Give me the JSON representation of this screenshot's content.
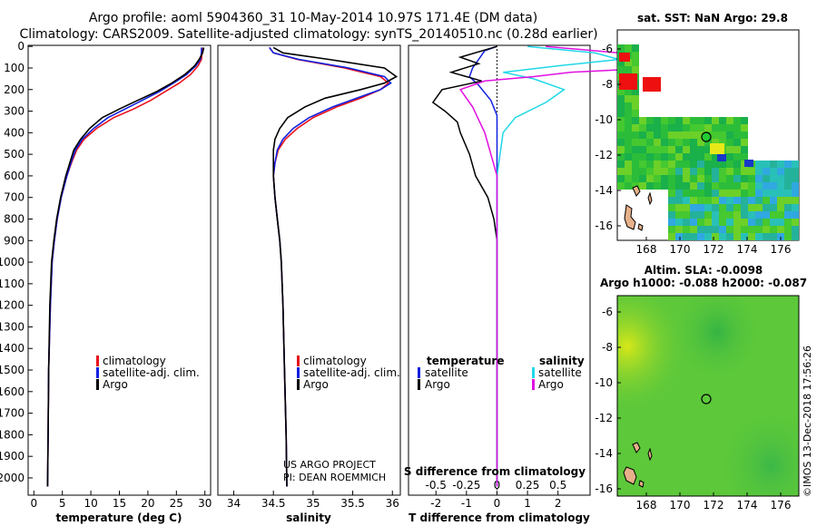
{
  "title_line1": "Argo profile: aoml 5904360_31 10-May-2014 10.97S 171.4E (DM data)",
  "title_line2": "Climatology: CARS2009. Satellite-adjusted climatology: synTS_20140510.nc (0.28d earlier)",
  "colors": {
    "clim": "#e8101a",
    "sat": "#1020e0",
    "argo": "#000000",
    "sat_s": "#20d8e8",
    "argo_s": "#e010e0"
  },
  "depth_ticks": [
    "0",
    "100",
    "200",
    "300",
    "400",
    "500",
    "600",
    "700",
    "800",
    "900",
    "1000",
    "1100",
    "1200",
    "1300",
    "1400",
    "1500",
    "1600",
    "1700",
    "1800",
    "1900",
    "2000"
  ],
  "chart_data": [
    {
      "type": "line",
      "name": "temperature-profile",
      "xlabel": "temperature (deg C)",
      "xlim": [
        -1,
        31
      ],
      "ylim": [
        2080,
        -5
      ],
      "xticks": [
        "0",
        "5",
        "10",
        "15",
        "20",
        "25",
        "30"
      ],
      "legend": [
        "climatology",
        "satellite-adj. clim.",
        "Argo"
      ],
      "series": [
        {
          "name": "climatology",
          "x": [
            29.6,
            29.5,
            29.4,
            28.8,
            27.5,
            25.5,
            23,
            20.5,
            17.5,
            14,
            11,
            8.8,
            7.5,
            6.6,
            5.8,
            4.8,
            4.1,
            3.6,
            3.2,
            2.9,
            2.6,
            2.5,
            2.4
          ],
          "y": [
            5,
            30,
            60,
            90,
            130,
            170,
            210,
            250,
            290,
            330,
            380,
            430,
            480,
            540,
            600,
            700,
            800,
            900,
            1000,
            1200,
            1500,
            1800,
            2040
          ]
        },
        {
          "name": "satellite-adj. clim.",
          "x": [
            29.4,
            29.4,
            29.2,
            28.4,
            26.8,
            24.5,
            22,
            19,
            16,
            13,
            10.5,
            8.5,
            7.3,
            6.5,
            5.8,
            4.8,
            4.1,
            3.6,
            3.2,
            2.9,
            2.6,
            2.5,
            2.4
          ],
          "y": [
            5,
            30,
            60,
            90,
            130,
            170,
            210,
            250,
            290,
            330,
            380,
            430,
            480,
            540,
            600,
            700,
            800,
            900,
            1000,
            1200,
            1500,
            1800,
            2040
          ]
        },
        {
          "name": "Argo",
          "x": [
            29.8,
            29.6,
            29.0,
            28.2,
            26.5,
            24.2,
            21.5,
            18.2,
            15,
            12,
            9.8,
            8.2,
            7.0,
            6.3,
            5.6,
            4.7,
            4.0,
            3.5,
            3.1,
            2.8,
            2.6,
            2.5,
            2.4
          ],
          "y": [
            5,
            30,
            60,
            90,
            130,
            170,
            210,
            250,
            290,
            330,
            380,
            430,
            480,
            540,
            600,
            700,
            800,
            900,
            1000,
            1200,
            1500,
            1800,
            2040
          ]
        }
      ]
    },
    {
      "type": "line",
      "name": "salinity-profile",
      "xlabel": "salinity",
      "xlim": [
        33.8,
        36.1
      ],
      "ylim": [
        2080,
        -5
      ],
      "xticks": [
        "34",
        "34.5",
        "35",
        "35.5",
        "36"
      ],
      "legend": [
        "climatology",
        "satellite-adj. clim.",
        "Argo"
      ],
      "series": [
        {
          "name": "climatology",
          "x": [
            34.45,
            34.5,
            34.8,
            35.4,
            35.85,
            35.95,
            35.85,
            35.6,
            35.3,
            35.0,
            34.8,
            34.65,
            34.56,
            34.52,
            34.5,
            34.52,
            34.55,
            34.58,
            34.6,
            34.62,
            34.64,
            34.66,
            34.67
          ],
          "y": [
            5,
            30,
            60,
            100,
            140,
            170,
            200,
            240,
            280,
            330,
            380,
            430,
            480,
            540,
            600,
            700,
            800,
            900,
            1000,
            1200,
            1500,
            1800,
            2040
          ]
        },
        {
          "name": "satellite-adj. clim.",
          "x": [
            34.45,
            34.5,
            34.82,
            35.45,
            35.9,
            35.98,
            35.85,
            35.55,
            35.25,
            34.95,
            34.75,
            34.62,
            34.55,
            34.52,
            34.5,
            34.52,
            34.55,
            34.58,
            34.6,
            34.62,
            34.64,
            34.66,
            34.67
          ],
          "y": [
            5,
            30,
            60,
            100,
            140,
            170,
            200,
            240,
            280,
            330,
            380,
            430,
            480,
            540,
            600,
            700,
            800,
            900,
            1000,
            1200,
            1500,
            1800,
            2040
          ]
        },
        {
          "name": "Argo",
          "x": [
            34.5,
            34.62,
            35.2,
            35.9,
            36.05,
            35.9,
            35.6,
            35.15,
            34.9,
            34.68,
            34.58,
            34.52,
            34.5,
            34.5,
            34.5,
            34.52,
            34.55,
            34.58,
            34.6,
            34.62,
            34.64,
            34.66,
            34.67
          ],
          "y": [
            5,
            30,
            60,
            100,
            140,
            170,
            200,
            240,
            280,
            330,
            380,
            430,
            480,
            540,
            600,
            700,
            800,
            900,
            1000,
            1200,
            1500,
            1800,
            2040
          ]
        }
      ]
    },
    {
      "type": "line",
      "name": "difference-profile",
      "xlabel": "T difference from climatology",
      "top_label": "S difference from climatology",
      "xlim": [
        -2.9,
        3.05
      ],
      "ylim": [
        2080,
        -5
      ],
      "xticks": [
        "-2",
        "-1",
        "0",
        "1",
        "2"
      ],
      "sticks": [
        "-0.5",
        "-0.25",
        "0",
        "0.25",
        "0.5"
      ],
      "legend_t": [
        "temperature",
        "satellite",
        "Argo"
      ],
      "legend_s": [
        "salinity",
        "satellite",
        "Argo"
      ],
      "series": [
        {
          "name": "T satellite",
          "x": [
            0,
            -0.4,
            -0.6,
            -0.8,
            -0.9,
            -0.6,
            -0.2,
            0,
            0,
            0,
            0
          ],
          "y": [
            0,
            20,
            60,
            100,
            140,
            180,
            250,
            320,
            400,
            800,
            2040
          ]
        },
        {
          "name": "T Argo",
          "x": [
            0,
            -1.2,
            -0.6,
            -1.5,
            -0.5,
            -1.8,
            -2.1,
            -1.7,
            -1.3,
            -1.2,
            -0.9,
            -0.7,
            -0.3,
            -0.1,
            0,
            0
          ],
          "y": [
            0,
            50,
            80,
            120,
            160,
            200,
            260,
            300,
            350,
            400,
            500,
            600,
            700,
            800,
            900,
            2040
          ]
        },
        {
          "name": "S satellite",
          "x": [
            0.25,
            0.8,
            1.0,
            0.5,
            0.05,
            0.3,
            0.55,
            0.4,
            0.15,
            0.05,
            0,
            0
          ],
          "y": [
            0,
            30,
            60,
            90,
            120,
            150,
            200,
            260,
            330,
            400,
            600,
            2040
          ]
        },
        {
          "name": "S Argo",
          "x": [
            0.4,
            1.2,
            1.8,
            1.3,
            0.6,
            0.3,
            -0.1,
            -0.3,
            -0.2,
            -0.1,
            0,
            0
          ],
          "y": [
            0,
            40,
            70,
            100,
            120,
            140,
            160,
            200,
            280,
            400,
            600,
            2040
          ]
        }
      ]
    },
    {
      "type": "heatmap",
      "name": "sst-map",
      "title": "sat. SST: NaN Argo: 29.8",
      "xticks": [
        "168",
        "170",
        "172",
        "174",
        "176"
      ],
      "yticks": [
        "-6",
        "-8",
        "-10",
        "-12",
        "-14",
        "-16"
      ]
    },
    {
      "type": "heatmap",
      "name": "sla-map",
      "title1": "Altim. SLA: -0.0098",
      "title2": "Argo h1000: -0.088 h2000: -0.087",
      "xticks": [
        "168",
        "170",
        "172",
        "174",
        "176"
      ],
      "yticks": [
        "-6",
        "-8",
        "-10",
        "-12",
        "-14",
        "-16"
      ]
    }
  ],
  "notes": {
    "project": "US ARGO PROJECT",
    "pi": "PI: DEAN ROEMMICH",
    "credit": "©IMOS 13-Dec-2018 17:56:26"
  }
}
